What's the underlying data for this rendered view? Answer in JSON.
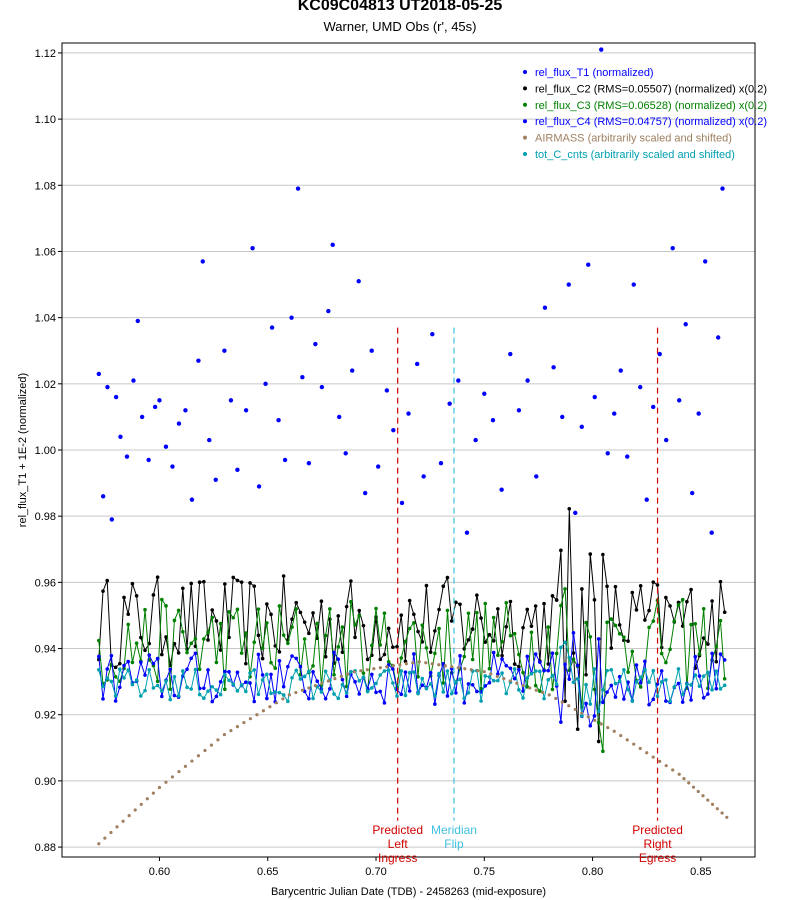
{
  "chart_data": {
    "type": "scatter",
    "title": "KC09C04813 UT2018-05-25",
    "subtitle": "Warner, UMD Obs (r', 45s)",
    "xlabel": "Barycentric Julian Date (TDB) - 2458263 (mid-exposure)",
    "ylabel": "rel_flux_T1 + 1E-2 (normalized)",
    "xlim": [
      0.555,
      0.875
    ],
    "ylim": [
      0.877,
      1.123
    ],
    "x_ticks": [
      "0.60",
      "0.65",
      "0.70",
      "0.75",
      "0.80",
      "0.85"
    ],
    "x_tick_values": [
      0.6,
      0.65,
      0.7,
      0.75,
      0.8,
      0.85
    ],
    "y_ticks": [
      "0.88",
      "0.90",
      "0.92",
      "0.94",
      "0.96",
      "0.98",
      "1.00",
      "1.02",
      "1.04",
      "1.06",
      "1.08",
      "1.10",
      "1.12"
    ],
    "y_tick_values": [
      0.88,
      0.9,
      0.92,
      0.94,
      0.96,
      0.98,
      1.0,
      1.02,
      1.04,
      1.06,
      1.08,
      1.1,
      1.12
    ],
    "grid": "horizontal",
    "legend_position": "top-right",
    "series": [
      {
        "name": "rel_flux_T1 (normalized)",
        "color": "#0000ff",
        "style": "dots",
        "x": [
          0.572,
          0.574,
          0.576,
          0.578,
          0.58,
          0.582,
          0.585,
          0.588,
          0.59,
          0.592,
          0.595,
          0.598,
          0.6,
          0.603,
          0.606,
          0.609,
          0.612,
          0.615,
          0.618,
          0.62,
          0.623,
          0.626,
          0.63,
          0.633,
          0.636,
          0.64,
          0.643,
          0.646,
          0.649,
          0.652,
          0.655,
          0.658,
          0.661,
          0.664,
          0.666,
          0.669,
          0.672,
          0.675,
          0.678,
          0.68,
          0.683,
          0.686,
          0.689,
          0.692,
          0.695,
          0.698,
          0.701,
          0.705,
          0.708,
          0.712,
          0.715,
          0.719,
          0.722,
          0.726,
          0.73,
          0.734,
          0.738,
          0.742,
          0.746,
          0.75,
          0.754,
          0.758,
          0.762,
          0.766,
          0.77,
          0.774,
          0.778,
          0.782,
          0.786,
          0.789,
          0.792,
          0.795,
          0.798,
          0.801,
          0.804,
          0.807,
          0.81,
          0.813,
          0.816,
          0.819,
          0.822,
          0.825,
          0.828,
          0.831,
          0.834,
          0.837,
          0.84,
          0.843,
          0.846,
          0.849,
          0.852,
          0.855,
          0.858,
          0.86
        ],
        "y": [
          1.023,
          0.986,
          1.019,
          0.979,
          1.016,
          1.004,
          0.998,
          1.021,
          1.039,
          1.01,
          0.997,
          1.013,
          1.015,
          1.001,
          0.995,
          1.008,
          1.012,
          0.985,
          1.027,
          1.057,
          1.003,
          0.991,
          1.03,
          1.015,
          0.994,
          1.012,
          1.061,
          0.989,
          1.02,
          1.037,
          1.009,
          0.997,
          1.04,
          1.079,
          1.022,
          0.996,
          1.032,
          1.019,
          1.042,
          1.062,
          1.01,
          0.999,
          1.024,
          1.051,
          0.987,
          1.03,
          0.995,
          1.018,
          1.006,
          0.984,
          1.011,
          1.026,
          0.992,
          1.035,
          0.996,
          1.014,
          1.021,
          0.975,
          1.003,
          1.017,
          1.009,
          0.988,
          1.029,
          1.012,
          1.021,
          0.992,
          1.043,
          1.025,
          1.01,
          1.05,
          0.981,
          1.007,
          1.056,
          1.016,
          1.121,
          0.999,
          1.011,
          1.024,
          0.998,
          1.05,
          1.019,
          0.985,
          1.013,
          1.029,
          1.003,
          1.061,
          1.015,
          1.038,
          0.987,
          1.011,
          1.057,
          0.975,
          1.034,
          1.079
        ]
      },
      {
        "name": "rel_flux_C2 (RMS=0.05507) (normalized) x(0.2)",
        "color": "#000000",
        "style": "dots+line",
        "mean": 0.948,
        "spread": 0.014
      },
      {
        "name": "rel_flux_C3 (RMS=0.06528) (normalized) x(0.2)",
        "color": "#008000",
        "style": "dots+line",
        "mean": 0.941,
        "spread": 0.014
      },
      {
        "name": "rel_flux_C4 (RMS=0.04757) (normalized) x(0.2)",
        "color": "#0000ff",
        "style": "dots+line",
        "mean": 0.931,
        "spread": 0.008
      },
      {
        "name": "AIRMASS (arbitrarily scaled and shifted)",
        "color": "#a08060",
        "style": "dots",
        "x": [
          0.572,
          0.6,
          0.63,
          0.66,
          0.69,
          0.72,
          0.75,
          0.78,
          0.81,
          0.84,
          0.862
        ],
        "y": [
          0.881,
          0.898,
          0.914,
          0.926,
          0.933,
          0.936,
          0.933,
          0.926,
          0.915,
          0.902,
          0.889
        ]
      },
      {
        "name": "tot_C_cnts (arbitrarily scaled and shifted)",
        "color": "#00a0b0",
        "style": "dots+line",
        "mean": 0.929,
        "spread": 0.005
      }
    ],
    "annotations": [
      {
        "label": [
          "Predicted",
          "Left",
          "Ingress"
        ],
        "x": 0.71,
        "color": "#d00000"
      },
      {
        "label": [
          "Meridian",
          "Flip"
        ],
        "x": 0.736,
        "color": "#40c0e0"
      },
      {
        "label": [
          "Predicted",
          "Right",
          "Egress"
        ],
        "x": 0.83,
        "color": "#d00000"
      }
    ]
  }
}
